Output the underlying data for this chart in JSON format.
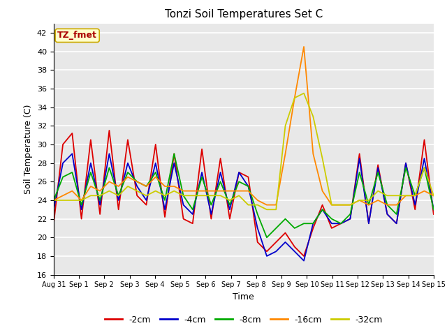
{
  "title": "Tonzi Soil Temperatures Set C",
  "xlabel": "Time",
  "ylabel": "Soil Temperature (C)",
  "ylim": [
    16,
    43
  ],
  "yticks": [
    16,
    18,
    20,
    22,
    24,
    26,
    28,
    30,
    32,
    34,
    36,
    38,
    40,
    42
  ],
  "annotation_text": "TZ_fmet",
  "annotation_color": "#aa0000",
  "annotation_bg": "#ffffcc",
  "annotation_border": "#ccaa00",
  "fig_bg": "#ffffff",
  "plot_bg": "#e8e8e8",
  "grid_color": "#ffffff",
  "series": {
    "-2cm": {
      "color": "#dd0000",
      "lw": 1.3
    },
    "-4cm": {
      "color": "#0000cc",
      "lw": 1.3
    },
    "-8cm": {
      "color": "#00aa00",
      "lw": 1.3
    },
    "-16cm": {
      "color": "#ff8800",
      "lw": 1.3
    },
    "-32cm": {
      "color": "#cccc00",
      "lw": 1.3
    }
  },
  "x_labels": [
    "Aug 31",
    "Sep 1",
    "Sep 2",
    "Sep 3",
    "Sep 4",
    "Sep 5",
    "Sep 6",
    "Sep 7",
    "Sep 8",
    "Sep 9",
    "Sep 10",
    "Sep 11",
    "Sep 12",
    "Sep 13",
    "Sep 14",
    "Sep 15"
  ],
  "data_2cm": [
    21.5,
    30.0,
    31.2,
    22.0,
    30.5,
    22.5,
    31.5,
    23.0,
    30.5,
    24.5,
    23.5,
    30.0,
    22.2,
    29.0,
    22.0,
    21.5,
    29.5,
    22.0,
    28.5,
    22.0,
    27.0,
    26.5,
    19.5,
    18.5,
    19.5,
    20.5,
    19.0,
    18.0,
    21.0,
    23.5,
    21.0,
    21.5,
    22.0,
    29.0,
    21.5,
    27.8,
    22.5,
    21.5,
    28.0,
    23.0,
    30.5,
    22.5
  ],
  "data_4cm": [
    23.0,
    28.0,
    29.0,
    23.0,
    28.0,
    23.5,
    29.0,
    24.0,
    28.0,
    25.5,
    24.0,
    28.0,
    23.0,
    28.0,
    23.5,
    22.5,
    27.0,
    22.5,
    27.0,
    23.0,
    27.0,
    25.5,
    21.0,
    18.0,
    18.5,
    19.5,
    18.5,
    17.5,
    21.5,
    23.0,
    21.5,
    21.5,
    22.0,
    28.5,
    21.5,
    27.5,
    22.5,
    21.5,
    28.0,
    23.5,
    28.5,
    23.0
  ],
  "data_8cm": [
    24.0,
    26.5,
    27.0,
    23.5,
    27.0,
    24.0,
    27.5,
    24.5,
    27.0,
    26.0,
    25.5,
    27.0,
    24.0,
    29.0,
    24.5,
    23.0,
    26.5,
    23.5,
    26.0,
    23.5,
    26.0,
    25.5,
    22.5,
    20.0,
    21.0,
    22.0,
    21.0,
    21.5,
    21.5,
    23.0,
    22.0,
    21.5,
    22.5,
    27.0,
    23.5,
    27.0,
    23.5,
    22.5,
    27.5,
    24.5,
    27.5,
    23.0
  ],
  "data_16cm": [
    24.0,
    24.5,
    25.0,
    24.0,
    25.5,
    25.0,
    26.0,
    25.5,
    26.5,
    26.0,
    25.5,
    26.5,
    25.5,
    25.5,
    25.0,
    25.0,
    25.0,
    25.0,
    25.0,
    25.0,
    25.0,
    25.0,
    24.0,
    23.5,
    23.5,
    29.0,
    35.0,
    40.5,
    29.0,
    25.0,
    23.5,
    23.5,
    23.5,
    24.0,
    23.5,
    24.0,
    23.5,
    23.5,
    24.5,
    24.5,
    25.0,
    24.5
  ],
  "data_32cm": [
    24.0,
    24.0,
    24.0,
    24.0,
    24.5,
    24.5,
    25.0,
    24.5,
    25.5,
    25.0,
    24.5,
    25.0,
    24.5,
    25.0,
    24.5,
    24.5,
    24.5,
    24.5,
    24.5,
    24.0,
    24.5,
    23.5,
    23.5,
    23.0,
    23.0,
    32.0,
    35.0,
    35.5,
    33.0,
    28.5,
    23.5,
    23.5,
    23.5,
    24.0,
    24.0,
    25.0,
    24.5,
    24.5,
    24.5,
    24.5,
    27.5,
    24.5
  ]
}
